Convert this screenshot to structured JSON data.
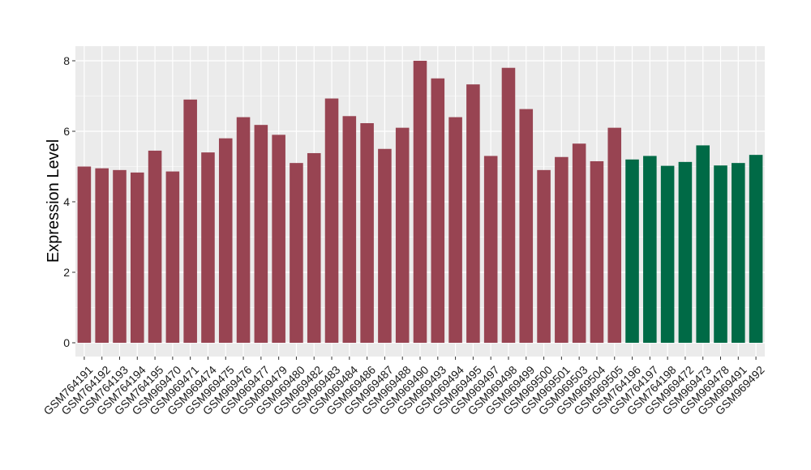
{
  "chart_data": {
    "type": "bar",
    "title": "",
    "xlabel": "",
    "ylabel": "Expression Level",
    "ylim": [
      0,
      8.2
    ],
    "yticks": [
      0,
      2,
      4,
      6,
      8
    ],
    "grid": true,
    "legend": "none",
    "colors": {
      "group_a": "#984452",
      "group_b": "#006a46",
      "panel_bg": "#ebebeb",
      "grid": "#ffffff"
    },
    "categories": [
      "GSM764191",
      "GSM764192",
      "GSM764193",
      "GSM764194",
      "GSM764195",
      "GSM969470",
      "GSM969471",
      "GSM969474",
      "GSM969475",
      "GSM969476",
      "GSM969477",
      "GSM969479",
      "GSM969480",
      "GSM969482",
      "GSM969483",
      "GSM969484",
      "GSM969486",
      "GSM969487",
      "GSM969488",
      "GSM969490",
      "GSM969493",
      "GSM969494",
      "GSM969495",
      "GSM969497",
      "GSM969498",
      "GSM969499",
      "GSM969500",
      "GSM969501",
      "GSM969503",
      "GSM969504",
      "GSM969505",
      "GSM764196",
      "GSM764197",
      "GSM764198",
      "GSM969472",
      "GSM969473",
      "GSM969478",
      "GSM969491",
      "GSM969492"
    ],
    "values": [
      5.0,
      4.95,
      4.9,
      4.83,
      5.45,
      4.86,
      6.9,
      5.4,
      5.8,
      6.4,
      6.18,
      5.9,
      5.1,
      5.38,
      6.93,
      6.43,
      6.23,
      5.5,
      6.1,
      8.0,
      7.5,
      6.4,
      7.33,
      5.3,
      7.8,
      6.63,
      4.9,
      5.27,
      5.65,
      5.15,
      6.1,
      5.2,
      5.3,
      5.02,
      5.13,
      5.6,
      5.03,
      5.1,
      5.33
    ],
    "groups": [
      "a",
      "a",
      "a",
      "a",
      "a",
      "a",
      "a",
      "a",
      "a",
      "a",
      "a",
      "a",
      "a",
      "a",
      "a",
      "a",
      "a",
      "a",
      "a",
      "a",
      "a",
      "a",
      "a",
      "a",
      "a",
      "a",
      "a",
      "a",
      "a",
      "a",
      "a",
      "b",
      "b",
      "b",
      "b",
      "b",
      "b",
      "b",
      "b"
    ]
  }
}
